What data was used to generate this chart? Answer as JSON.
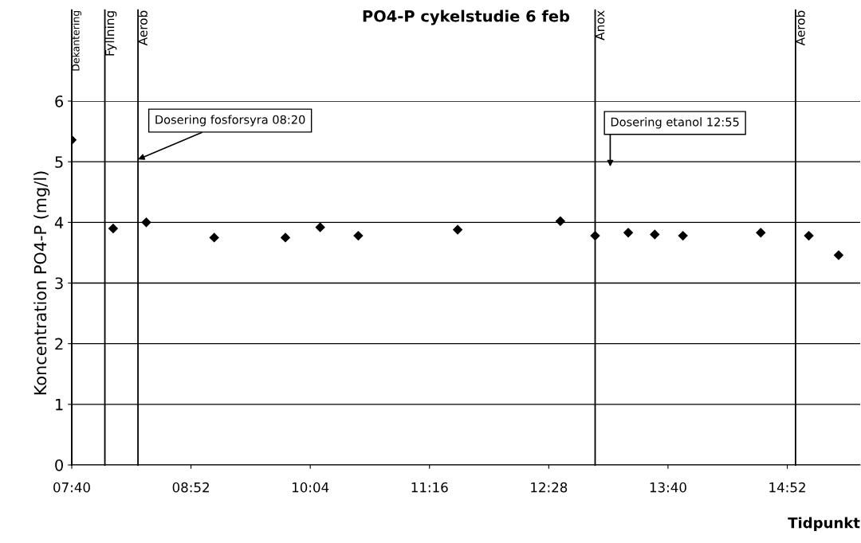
{
  "chart_data": {
    "type": "scatter",
    "title": "PO4-P cykelstudie 6 feb",
    "xlabel": "Tidpunkt",
    "ylabel": "Koncentration PO4-P (mg/l)",
    "x": [
      7.6667,
      8.0833,
      8.4167,
      9.1,
      9.8167,
      10.1667,
      10.55,
      11.55,
      12.5833,
      12.9333,
      13.2667,
      13.5333,
      13.8167,
      14.6,
      15.0833,
      15.3833
    ],
    "series": [
      {
        "color": "#000000",
        "values": [
          5.36,
          3.9,
          4.0,
          3.75,
          3.75,
          3.92,
          3.78,
          3.88,
          4.02,
          3.78,
          3.83,
          3.8,
          3.78,
          3.83,
          3.78,
          3.46
        ]
      }
    ],
    "marker": "diamond",
    "grid": "y",
    "legend": false,
    "xlim": [
      7.6667,
      15.6
    ],
    "ylim": [
      0,
      6
    ],
    "xticks": [
      {
        "value": 7.6667,
        "label": "07:40"
      },
      {
        "value": 8.8667,
        "label": "08:52"
      },
      {
        "value": 10.0667,
        "label": "10:04"
      },
      {
        "value": 11.2667,
        "label": "11:16"
      },
      {
        "value": 12.4667,
        "label": "12:28"
      },
      {
        "value": 13.6667,
        "label": "13:40"
      },
      {
        "value": 14.8667,
        "label": "14:52"
      }
    ],
    "yticks": [
      0,
      1,
      2,
      3,
      4,
      5,
      6
    ],
    "ref_lines": [
      {
        "axis": "x",
        "value": 7.6667,
        "label": "Dekantering"
      },
      {
        "axis": "x",
        "value": 8.0,
        "label": "Fyllning"
      },
      {
        "axis": "x",
        "value": 8.3333,
        "label": "Aerob"
      },
      {
        "axis": "x",
        "value": 12.9333,
        "label": "Anox"
      },
      {
        "axis": "x",
        "value": 14.95,
        "label": "Aerob"
      }
    ],
    "annotations": [
      {
        "text": "Dosering fosforsyra 08:20",
        "x": 8.3333,
        "y": 5.04
      },
      "Dosering etanol 12:55"
    ]
  }
}
